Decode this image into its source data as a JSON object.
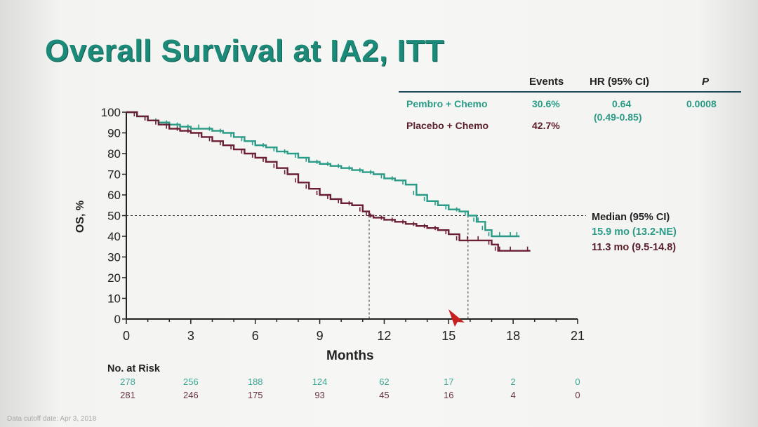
{
  "slide": {
    "title": "Overall Survival at IA2, ITT",
    "footnote": "Data cutoff date: Apr 3, 2018"
  },
  "summary_table": {
    "headers": {
      "events": "Events",
      "hr": "HR (95% CI)",
      "p": "P"
    },
    "rows": [
      {
        "arm": "Pembro + Chemo",
        "events": "30.6%"
      },
      {
        "arm": "Placebo + Chemo",
        "events": "42.7%"
      }
    ],
    "hr_value": "0.64",
    "hr_ci": "(0.49-0.85)",
    "p_value": "0.0008"
  },
  "median_block": {
    "title": "Median (95% CI)",
    "pembro": "15.9 mo (13.2-NE)",
    "placebo": "11.3 mo (9.5-14.8)"
  },
  "risk_table": {
    "title": "No. at Risk",
    "pembro": [
      "278",
      "256",
      "188",
      "124",
      "62",
      "17",
      "2",
      "0"
    ],
    "placebo": [
      "281",
      "246",
      "175",
      "93",
      "45",
      "16",
      "4",
      "0"
    ]
  },
  "colors": {
    "pembro": "#2a9b86",
    "placebo": "#6b1f33",
    "title": "#1b8a78"
  },
  "chart_data": {
    "type": "line",
    "subtype": "kaplan-meier-step",
    "title": "Overall Survival at IA2, ITT",
    "xlabel": "Months",
    "ylabel": "OS, %",
    "xlim": [
      0,
      21
    ],
    "ylim": [
      0,
      100
    ],
    "x_ticks": [
      0,
      3,
      6,
      9,
      12,
      15,
      18,
      21
    ],
    "y_ticks": [
      0,
      10,
      20,
      30,
      40,
      50,
      60,
      70,
      80,
      90,
      100
    ],
    "grid": false,
    "median_reference": {
      "y": 50,
      "x_pembro": 15.9,
      "x_placebo": 11.3
    },
    "series": [
      {
        "name": "Pembro + Chemo",
        "color": "#2a9b86",
        "x": [
          0,
          0.5,
          1.0,
          1.5,
          2.0,
          2.5,
          3.0,
          3.5,
          4.0,
          4.5,
          5.0,
          5.5,
          6.0,
          6.5,
          7.0,
          7.5,
          8.0,
          8.5,
          9.0,
          9.5,
          10.0,
          10.5,
          11.0,
          11.5,
          12.0,
          12.5,
          13.0,
          13.5,
          14.0,
          14.5,
          15.0,
          15.5,
          15.9,
          16.3,
          16.5,
          16.7,
          17.0,
          17.5,
          18.0,
          18.3
        ],
        "y": [
          100,
          98,
          96,
          95,
          94,
          93,
          92,
          92,
          91,
          90,
          88,
          86,
          84,
          83,
          81,
          80,
          78,
          76,
          75,
          74,
          73,
          72,
          71,
          70,
          68,
          67,
          65,
          60,
          57,
          55,
          53,
          52,
          50,
          47,
          47,
          43,
          40,
          40,
          40,
          40
        ]
      },
      {
        "name": "Placebo + Chemo",
        "color": "#6b1f33",
        "x": [
          0,
          0.5,
          1.0,
          1.5,
          2.0,
          2.5,
          3.0,
          3.5,
          4.0,
          4.5,
          5.0,
          5.5,
          6.0,
          6.5,
          7.0,
          7.5,
          8.0,
          8.5,
          9.0,
          9.5,
          10.0,
          10.5,
          11.0,
          11.3,
          11.5,
          12.0,
          12.5,
          13.0,
          13.5,
          14.0,
          14.5,
          15.0,
          15.5,
          16.0,
          16.5,
          17.0,
          17.3,
          17.5,
          18.0,
          18.8
        ],
        "y": [
          100,
          98,
          96,
          94,
          92,
          91,
          90,
          88,
          86,
          84,
          82,
          80,
          78,
          76,
          73,
          70,
          66,
          63,
          60,
          58,
          56,
          55,
          52,
          50,
          49,
          48,
          47,
          46,
          45,
          44,
          43,
          41,
          38,
          38,
          38,
          36,
          33,
          33,
          33,
          33
        ]
      }
    ]
  }
}
